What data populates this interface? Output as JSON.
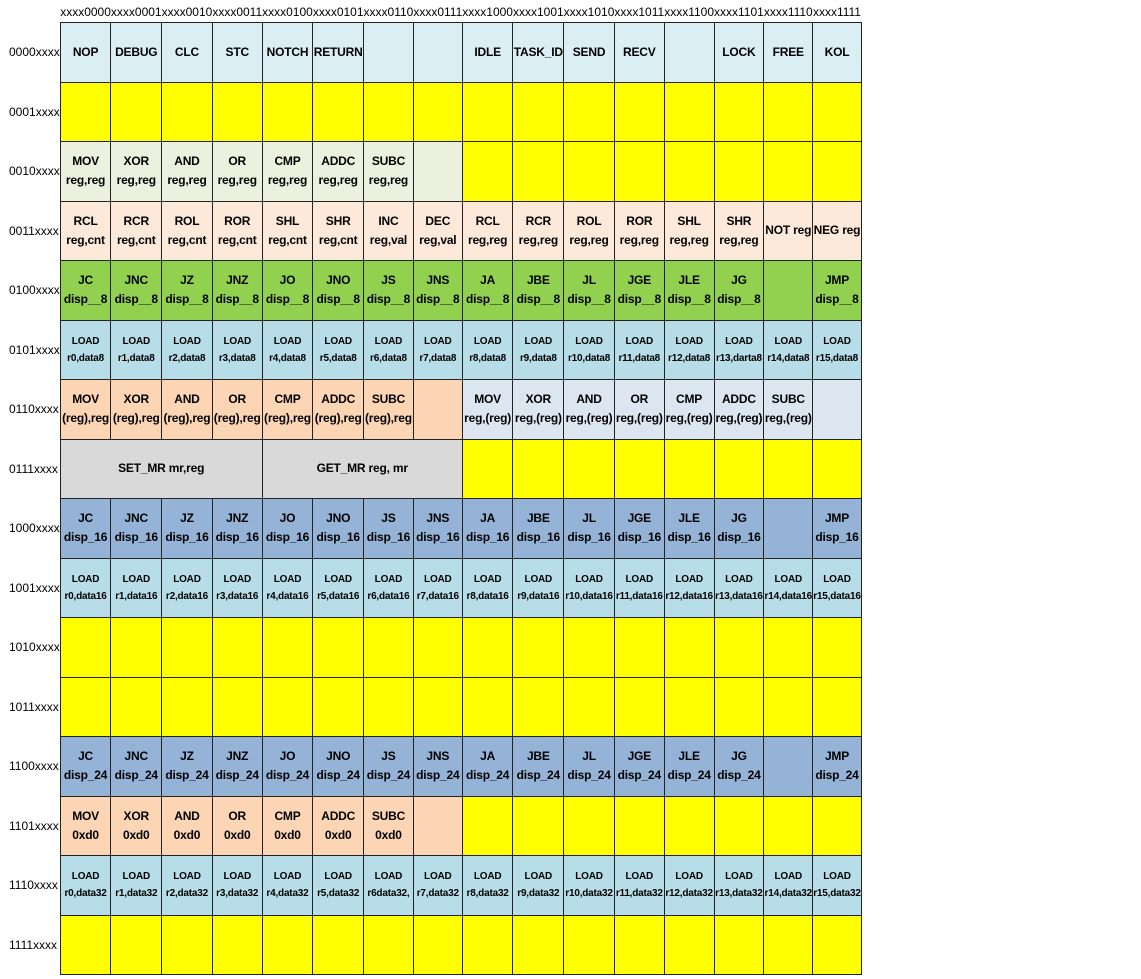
{
  "col_headers": [
    "xxxx0000",
    "xxxx0001",
    "xxxx0010",
    "xxxx0011",
    "xxxx0100",
    "xxxx0101",
    "xxxx0110",
    "xxxx0111",
    "xxxx1000",
    "xxxx1001",
    "xxxx1010",
    "xxxx1011",
    "xxxx1100",
    "xxxx1101",
    "xxxx1110",
    "xxxx1111"
  ],
  "colors": {
    "hb": "#dbeef4",
    "y": "#ffff00",
    "lg": "#ebf1de",
    "pk": "#fde9d9",
    "g": "#92d050",
    "lb": "#b7dee8",
    "or": "#fcd5b4",
    "gb": "#dce6f1",
    "gr": "#d9d9d9",
    "bl": "#95b3d7"
  },
  "rows": [
    {
      "label": "0000xxxx",
      "cells": [
        [
          "NOP",
          "hb"
        ],
        [
          "DEBUG",
          "hb"
        ],
        [
          "CLC",
          "hb"
        ],
        [
          "STC",
          "hb"
        ],
        [
          "NOTCH",
          "hb"
        ],
        [
          "RETURN",
          "hb"
        ],
        [
          "",
          "hb"
        ],
        [
          "",
          "hb"
        ],
        [
          "IDLE",
          "hb"
        ],
        [
          "TASK_ID",
          "hb"
        ],
        [
          "SEND",
          "hb"
        ],
        [
          "RECV",
          "hb"
        ],
        [
          "",
          "hb"
        ],
        [
          "LOCK",
          "hb"
        ],
        [
          "FREE",
          "hb"
        ],
        [
          "KOL",
          "hb"
        ]
      ]
    },
    {
      "label": "0001xxxx",
      "cells": [
        [
          "",
          "y"
        ],
        [
          "",
          "y"
        ],
        [
          "",
          "y"
        ],
        [
          "",
          "y"
        ],
        [
          "",
          "y"
        ],
        [
          "",
          "y"
        ],
        [
          "",
          "y"
        ],
        [
          "",
          "y"
        ],
        [
          "",
          "y"
        ],
        [
          "",
          "y"
        ],
        [
          "",
          "y"
        ],
        [
          "",
          "y"
        ],
        [
          "",
          "y"
        ],
        [
          "",
          "y"
        ],
        [
          "",
          "y"
        ],
        [
          "",
          "y"
        ]
      ]
    },
    {
      "label": "0010xxxx",
      "cells": [
        [
          "MOV\nreg,reg",
          "lg"
        ],
        [
          "XOR\nreg,reg",
          "lg"
        ],
        [
          "AND\nreg,reg",
          "lg"
        ],
        [
          "OR\nreg,reg",
          "lg"
        ],
        [
          "CMP\nreg,reg",
          "lg"
        ],
        [
          "ADDC\nreg,reg",
          "lg"
        ],
        [
          "SUBC\nreg,reg",
          "lg"
        ],
        [
          "",
          "lg"
        ],
        [
          "",
          "y"
        ],
        [
          "",
          "y"
        ],
        [
          "",
          "y"
        ],
        [
          "",
          "y"
        ],
        [
          "",
          "y"
        ],
        [
          "",
          "y"
        ],
        [
          "",
          "y"
        ],
        [
          "",
          "y"
        ]
      ]
    },
    {
      "label": "0011xxxx",
      "cells": [
        [
          "RCL\nreg,cnt",
          "pk"
        ],
        [
          "RCR\nreg,cnt",
          "pk"
        ],
        [
          "ROL\nreg,cnt",
          "pk"
        ],
        [
          "ROR\nreg,cnt",
          "pk"
        ],
        [
          "SHL\nreg,cnt",
          "pk"
        ],
        [
          "SHR\nreg,cnt",
          "pk"
        ],
        [
          "INC\nreg,val",
          "pk"
        ],
        [
          "DEC\nreg,val",
          "pk"
        ],
        [
          "RCL\nreg,reg",
          "pk"
        ],
        [
          "RCR\nreg,reg",
          "pk"
        ],
        [
          "ROL\nreg,reg",
          "pk"
        ],
        [
          "ROR\nreg,reg",
          "pk"
        ],
        [
          "SHL\nreg,reg",
          "pk"
        ],
        [
          "SHR\nreg,reg",
          "pk"
        ],
        [
          "NOT reg",
          "pk"
        ],
        [
          "NEG reg",
          "pk"
        ]
      ]
    },
    {
      "label": "0100xxxx",
      "cells": [
        [
          "JC\ndisp__8",
          "g"
        ],
        [
          "JNC\ndisp__8",
          "g"
        ],
        [
          "JZ\ndisp__8",
          "g"
        ],
        [
          "JNZ\ndisp__8",
          "g"
        ],
        [
          "JO\ndisp__8",
          "g"
        ],
        [
          "JNO\ndisp__8",
          "g"
        ],
        [
          "JS\ndisp__8",
          "g"
        ],
        [
          "JNS\ndisp__8",
          "g"
        ],
        [
          "JA\ndisp__8",
          "g"
        ],
        [
          "JBE\ndisp__8",
          "g"
        ],
        [
          "JL disp__8",
          "g"
        ],
        [
          "JGE\ndisp__8",
          "g"
        ],
        [
          "JLE\ndisp__8",
          "g"
        ],
        [
          "JG\ndisp__8",
          "g"
        ],
        [
          "",
          "g"
        ],
        [
          "JMP\ndisp__8",
          "g"
        ]
      ]
    },
    {
      "label": "0101xxxx",
      "small": true,
      "cells": [
        [
          "LOAD\nr0,data8",
          "lb"
        ],
        [
          "LOAD\nr1,data8",
          "lb"
        ],
        [
          "LOAD\nr2,data8",
          "lb"
        ],
        [
          "LOAD\nr3,data8",
          "lb"
        ],
        [
          "LOAD\nr4,data8",
          "lb"
        ],
        [
          "LOAD\nr5,data8",
          "lb"
        ],
        [
          "LOAD\nr6,data8",
          "lb"
        ],
        [
          "LOAD\nr7,data8",
          "lb"
        ],
        [
          "LOAD\nr8,data8",
          "lb"
        ],
        [
          "LOAD\nr9,data8",
          "lb"
        ],
        [
          "LOAD\nr10,data8",
          "lb"
        ],
        [
          "LOAD\nr11,data8",
          "lb"
        ],
        [
          "LOAD\nr12,data8",
          "lb"
        ],
        [
          "LOAD\nr13,darta8",
          "lb"
        ],
        [
          "LOAD\nr14,data8",
          "lb"
        ],
        [
          "LOAD\nr15,data8",
          "lb"
        ]
      ]
    },
    {
      "label": "0110xxxx",
      "cells": [
        [
          "MOV\n(reg),reg",
          "or"
        ],
        [
          "XOR\n(reg),reg",
          "or"
        ],
        [
          "AND\n(reg),reg",
          "or"
        ],
        [
          "OR\n(reg),reg",
          "or"
        ],
        [
          "CMP\n(reg),reg",
          "or"
        ],
        [
          "ADDC\n(reg),reg",
          "or"
        ],
        [
          "SUBC\n(reg),reg",
          "or"
        ],
        [
          "",
          "or"
        ],
        [
          "MOV\nreg,(reg)",
          "gb"
        ],
        [
          "XOR\nreg,(reg)",
          "gb"
        ],
        [
          "AND\nreg,(reg)",
          "gb"
        ],
        [
          "OR\nreg,(reg)",
          "gb"
        ],
        [
          "CMP\nreg,(reg)",
          "gb"
        ],
        [
          "ADDC\nreg,(reg)",
          "gb"
        ],
        [
          "SUBC\nreg,(reg)",
          "gb"
        ],
        [
          "",
          "gb"
        ]
      ]
    },
    {
      "label": "0111xxxx",
      "cells": [
        [
          "SET_MR mr,reg",
          "gr",
          4
        ],
        [
          "GET_MR reg, mr",
          "gr",
          4
        ],
        [
          "",
          "y"
        ],
        [
          "",
          "y"
        ],
        [
          "",
          "y"
        ],
        [
          "",
          "y"
        ],
        [
          "",
          "y"
        ],
        [
          "",
          "y"
        ],
        [
          "",
          "y"
        ],
        [
          "",
          "y"
        ]
      ]
    },
    {
      "label": "1000xxxx",
      "cells": [
        [
          "JC\ndisp_16",
          "bl"
        ],
        [
          "JNC\ndisp_16",
          "bl"
        ],
        [
          "JZ\ndisp_16",
          "bl"
        ],
        [
          "JNZ\ndisp_16",
          "bl"
        ],
        [
          "JO\ndisp_16",
          "bl"
        ],
        [
          "JNO\ndisp_16",
          "bl"
        ],
        [
          "JS\ndisp_16",
          "bl"
        ],
        [
          "JNS\ndisp_16",
          "bl"
        ],
        [
          "JA\ndisp_16",
          "bl"
        ],
        [
          "JBE\ndisp_16",
          "bl"
        ],
        [
          "JL disp_16",
          "bl"
        ],
        [
          "JGE\ndisp_16",
          "bl"
        ],
        [
          "JLE\ndisp_16",
          "bl"
        ],
        [
          "JG\ndisp_16",
          "bl"
        ],
        [
          "",
          "bl"
        ],
        [
          "JMP\ndisp_16",
          "bl"
        ]
      ]
    },
    {
      "label": "1001xxxx",
      "small": true,
      "cells": [
        [
          "LOAD\nr0,data16",
          "lb"
        ],
        [
          "LOAD\nr1,data16",
          "lb"
        ],
        [
          "LOAD\nr2,data16",
          "lb"
        ],
        [
          "LOAD\nr3,data16",
          "lb"
        ],
        [
          "LOAD\nr4,data16",
          "lb"
        ],
        [
          "LOAD\nr5,data16",
          "lb"
        ],
        [
          "LOAD\nr6,data16",
          "lb"
        ],
        [
          "LOAD\nr7,data16",
          "lb"
        ],
        [
          "LOAD\nr8,data16",
          "lb"
        ],
        [
          "LOAD\nr9,data16",
          "lb"
        ],
        [
          "LOAD\nr10,data16",
          "lb"
        ],
        [
          "LOAD\nr11,data16",
          "lb"
        ],
        [
          "LOAD\nr12,data16",
          "lb"
        ],
        [
          "LOAD\nr13,data16",
          "lb"
        ],
        [
          "LOAD\nr14,data16",
          "lb"
        ],
        [
          "LOAD\nr15,data16",
          "lb"
        ]
      ]
    },
    {
      "label": "1010xxxx",
      "cells": [
        [
          "",
          "y"
        ],
        [
          "",
          "y"
        ],
        [
          "",
          "y"
        ],
        [
          "",
          "y"
        ],
        [
          "",
          "y"
        ],
        [
          "",
          "y"
        ],
        [
          "",
          "y"
        ],
        [
          "",
          "y"
        ],
        [
          "",
          "y"
        ],
        [
          "",
          "y"
        ],
        [
          "",
          "y"
        ],
        [
          "",
          "y"
        ],
        [
          "",
          "y"
        ],
        [
          "",
          "y"
        ],
        [
          "",
          "y"
        ],
        [
          "",
          "y"
        ]
      ]
    },
    {
      "label": "1011xxxx",
      "cells": [
        [
          "",
          "y"
        ],
        [
          "",
          "y"
        ],
        [
          "",
          "y"
        ],
        [
          "",
          "y"
        ],
        [
          "",
          "y"
        ],
        [
          "",
          "y"
        ],
        [
          "",
          "y"
        ],
        [
          "",
          "y"
        ],
        [
          "",
          "y"
        ],
        [
          "",
          "y"
        ],
        [
          "",
          "y"
        ],
        [
          "",
          "y"
        ],
        [
          "",
          "y"
        ],
        [
          "",
          "y"
        ],
        [
          "",
          "y"
        ],
        [
          "",
          "y"
        ]
      ]
    },
    {
      "label": "1100xxxx",
      "cells": [
        [
          "JC\ndisp_24",
          "bl"
        ],
        [
          "JNC\ndisp_24",
          "bl"
        ],
        [
          "JZ\ndisp_24",
          "bl"
        ],
        [
          "JNZ\ndisp_24",
          "bl"
        ],
        [
          "JO\ndisp_24",
          "bl"
        ],
        [
          "JNO\ndisp_24",
          "bl"
        ],
        [
          "JS\ndisp_24",
          "bl"
        ],
        [
          "JNS\ndisp_24",
          "bl"
        ],
        [
          "JA\ndisp_24",
          "bl"
        ],
        [
          "JBE\ndisp_24",
          "bl"
        ],
        [
          "JL disp_24",
          "bl"
        ],
        [
          "JGE\ndisp_24",
          "bl"
        ],
        [
          "JLE\ndisp_24",
          "bl"
        ],
        [
          "JG\ndisp_24",
          "bl"
        ],
        [
          "",
          "bl"
        ],
        [
          "JMP\ndisp_24",
          "bl"
        ]
      ]
    },
    {
      "label": "1101xxxx",
      "cells": [
        [
          "MOV\n0xd0",
          "or"
        ],
        [
          "XOR\n0xd0",
          "or"
        ],
        [
          "AND\n0xd0",
          "or"
        ],
        [
          "OR\n0xd0",
          "or"
        ],
        [
          "CMP\n0xd0",
          "or"
        ],
        [
          "ADDC\n0xd0",
          "or"
        ],
        [
          "SUBC\n0xd0",
          "or"
        ],
        [
          "",
          "or"
        ],
        [
          "",
          "y"
        ],
        [
          "",
          "y"
        ],
        [
          "",
          "y"
        ],
        [
          "",
          "y"
        ],
        [
          "",
          "y"
        ],
        [
          "",
          "y"
        ],
        [
          "",
          "y"
        ],
        [
          "",
          "y"
        ]
      ]
    },
    {
      "label": "1110xxxx",
      "small": true,
      "cells": [
        [
          "LOAD\nr0,data32",
          "lb"
        ],
        [
          "LOAD\nr1,data32",
          "lb"
        ],
        [
          "LOAD\nr2,data32",
          "lb"
        ],
        [
          "LOAD\nr3,data32",
          "lb"
        ],
        [
          "LOAD\nr4,data32",
          "lb"
        ],
        [
          "LOAD\nr5,data32",
          "lb"
        ],
        [
          "LOAD\nr6data32,",
          "lb"
        ],
        [
          "LOAD\nr7,data32",
          "lb"
        ],
        [
          "LOAD\nr8,data32",
          "lb"
        ],
        [
          "LOAD\nr9,data32",
          "lb"
        ],
        [
          "LOAD\nr10,data32",
          "lb"
        ],
        [
          "LOAD\nr11,data32",
          "lb"
        ],
        [
          "LOAD\nr12,data32",
          "lb"
        ],
        [
          "LOAD\nr13,data32",
          "lb"
        ],
        [
          "LOAD\nr14,data32",
          "lb"
        ],
        [
          "LOAD\nr15,data32",
          "lb"
        ]
      ]
    },
    {
      "label": "1111xxxx",
      "cells": [
        [
          "",
          "y"
        ],
        [
          "",
          "y"
        ],
        [
          "",
          "y"
        ],
        [
          "",
          "y"
        ],
        [
          "",
          "y"
        ],
        [
          "",
          "y"
        ],
        [
          "",
          "y"
        ],
        [
          "",
          "y"
        ],
        [
          "",
          "y"
        ],
        [
          "",
          "y"
        ],
        [
          "",
          "y"
        ],
        [
          "",
          "y"
        ],
        [
          "",
          "y"
        ],
        [
          "",
          "y"
        ],
        [
          "",
          "y"
        ],
        [
          "",
          "y"
        ]
      ]
    }
  ]
}
